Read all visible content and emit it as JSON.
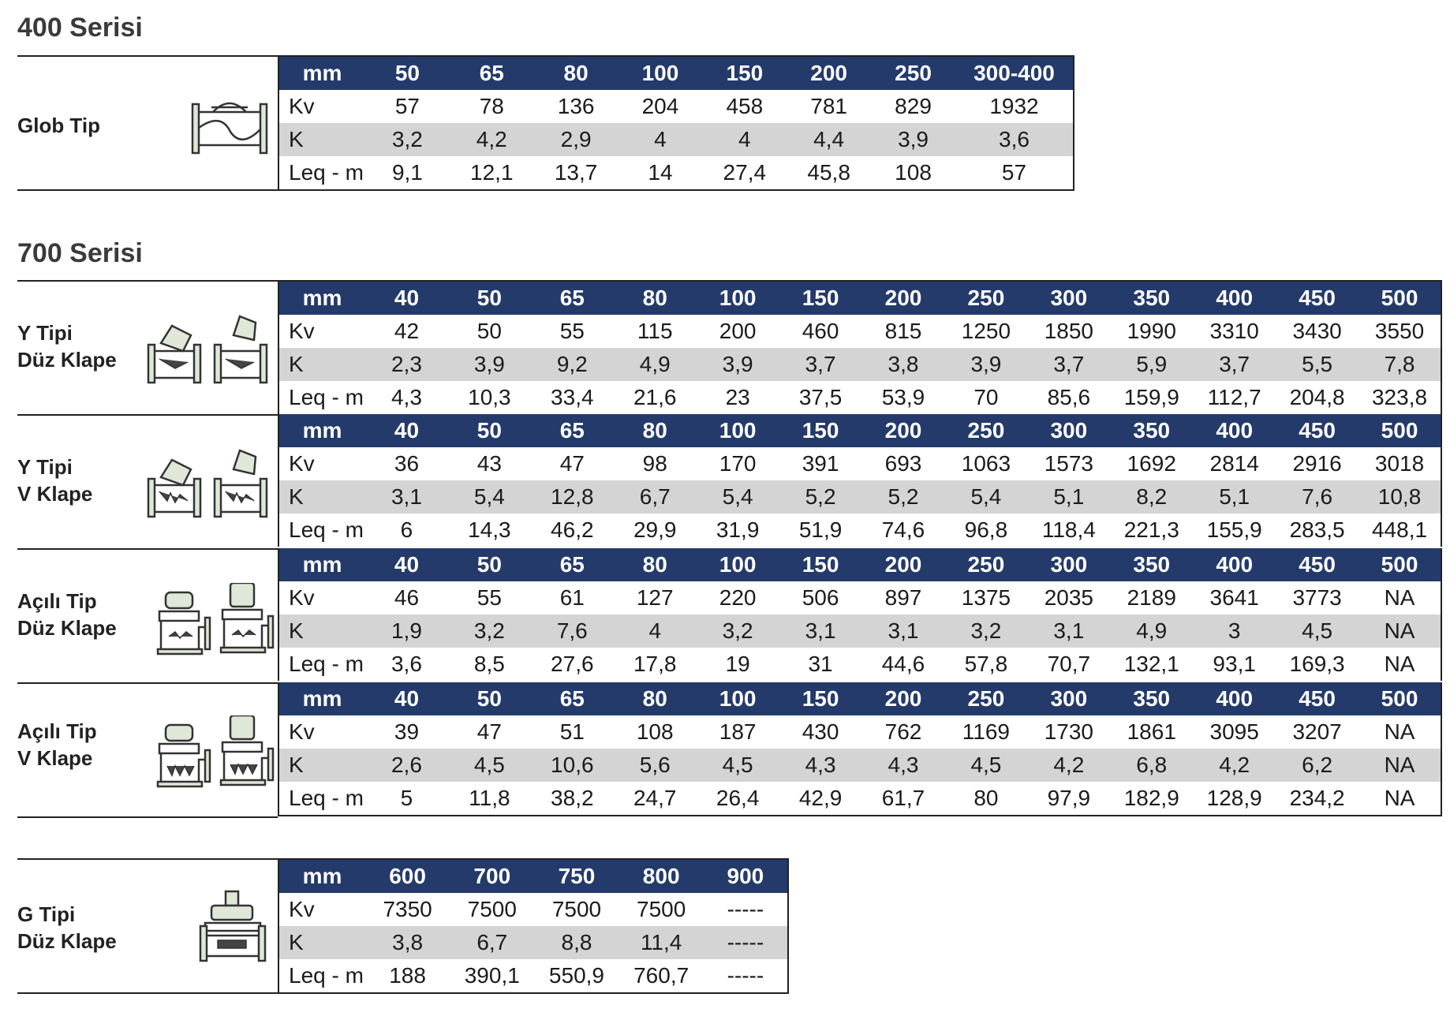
{
  "series400": {
    "title": "400 Serisi",
    "rows": [
      {
        "label": [
          "Glob Tip"
        ],
        "icon": "globe-valve-icon",
        "header": {
          "label": "mm",
          "sizes": [
            "50",
            "65",
            "80",
            "100",
            "150",
            "200",
            "250",
            "300-400"
          ]
        },
        "kv": {
          "label": "Kv",
          "values": [
            "57",
            "78",
            "136",
            "204",
            "458",
            "781",
            "829",
            "1932"
          ]
        },
        "k": {
          "label": "K",
          "values": [
            "3,2",
            "4,2",
            "2,9",
            "4",
            "4",
            "4,4",
            "3,9",
            "3,6"
          ]
        },
        "leq": {
          "label": "Leq - m",
          "values": [
            "9,1",
            "12,1",
            "13,7",
            "14",
            "27,4",
            "45,8",
            "108",
            "57"
          ]
        }
      }
    ]
  },
  "series700": {
    "title": "700 Serisi",
    "rows": [
      {
        "label": [
          "Y Tipi",
          "Düz Klape"
        ],
        "icon": "y-type-valve-icon",
        "header": {
          "label": "mm",
          "sizes": [
            "40",
            "50",
            "65",
            "80",
            "100",
            "150",
            "200",
            "250",
            "300",
            "350",
            "400",
            "450",
            "500"
          ]
        },
        "kv": {
          "label": "Kv",
          "values": [
            "42",
            "50",
            "55",
            "115",
            "200",
            "460",
            "815",
            "1250",
            "1850",
            "1990",
            "3310",
            "3430",
            "3550"
          ]
        },
        "k": {
          "label": "K",
          "values": [
            "2,3",
            "3,9",
            "9,2",
            "4,9",
            "3,9",
            "3,7",
            "3,8",
            "3,9",
            "3,7",
            "5,9",
            "3,7",
            "5,5",
            "7,8"
          ]
        },
        "leq": {
          "label": "Leq - m",
          "values": [
            "4,3",
            "10,3",
            "33,4",
            "21,6",
            "23",
            "37,5",
            "53,9",
            "70",
            "85,6",
            "159,9",
            "112,7",
            "204,8",
            "323,8"
          ]
        }
      },
      {
        "label": [
          "Y Tipi",
          "V Klape"
        ],
        "icon": "y-type-v-valve-icon",
        "header": {
          "label": "mm",
          "sizes": [
            "40",
            "50",
            "65",
            "80",
            "100",
            "150",
            "200",
            "250",
            "300",
            "350",
            "400",
            "450",
            "500"
          ]
        },
        "kv": {
          "label": "Kv",
          "values": [
            "36",
            "43",
            "47",
            "98",
            "170",
            "391",
            "693",
            "1063",
            "1573",
            "1692",
            "2814",
            "2916",
            "3018"
          ]
        },
        "k": {
          "label": "K",
          "values": [
            "3,1",
            "5,4",
            "12,8",
            "6,7",
            "5,4",
            "5,2",
            "5,2",
            "5,4",
            "5,1",
            "8,2",
            "5,1",
            "7,6",
            "10,8"
          ]
        },
        "leq": {
          "label": "Leq - m",
          "values": [
            "6",
            "14,3",
            "46,2",
            "29,9",
            "31,9",
            "51,9",
            "74,6",
            "96,8",
            "118,4",
            "221,3",
            "155,9",
            "283,5",
            "448,1"
          ]
        }
      },
      {
        "label": [
          "Açılı Tip",
          "Düz Klape"
        ],
        "icon": "angle-valve-icon",
        "header": {
          "label": "mm",
          "sizes": [
            "40",
            "50",
            "65",
            "80",
            "100",
            "150",
            "200",
            "250",
            "300",
            "350",
            "400",
            "450",
            "500"
          ]
        },
        "kv": {
          "label": "Kv",
          "values": [
            "46",
            "55",
            "61",
            "127",
            "220",
            "506",
            "897",
            "1375",
            "2035",
            "2189",
            "3641",
            "3773",
            "NA"
          ]
        },
        "k": {
          "label": "K",
          "values": [
            "1,9",
            "3,2",
            "7,6",
            "4",
            "3,2",
            "3,1",
            "3,1",
            "3,2",
            "3,1",
            "4,9",
            "3",
            "4,5",
            "NA"
          ]
        },
        "leq": {
          "label": "Leq - m",
          "values": [
            "3,6",
            "8,5",
            "27,6",
            "17,8",
            "19",
            "31",
            "44,6",
            "57,8",
            "70,7",
            "132,1",
            "93,1",
            "169,3",
            "NA"
          ]
        }
      },
      {
        "label": [
          "Açılı Tip",
          "V Klape"
        ],
        "icon": "angle-v-valve-icon",
        "header": {
          "label": "mm",
          "sizes": [
            "40",
            "50",
            "65",
            "80",
            "100",
            "150",
            "200",
            "250",
            "300",
            "350",
            "400",
            "450",
            "500"
          ]
        },
        "kv": {
          "label": "Kv",
          "values": [
            "39",
            "47",
            "51",
            "108",
            "187",
            "430",
            "762",
            "1169",
            "1730",
            "1861",
            "3095",
            "3207",
            "NA"
          ]
        },
        "k": {
          "label": "K",
          "values": [
            "2,6",
            "4,5",
            "10,6",
            "5,6",
            "4,5",
            "4,3",
            "4,3",
            "4,5",
            "4,2",
            "6,8",
            "4,2",
            "6,2",
            "NA"
          ]
        },
        "leq": {
          "label": "Leq - m",
          "values": [
            "5",
            "11,8",
            "38,2",
            "24,7",
            "26,4",
            "42,9",
            "61,7",
            "80",
            "97,9",
            "182,9",
            "128,9",
            "234,2",
            "NA"
          ]
        }
      }
    ]
  },
  "seriesG": {
    "rows": [
      {
        "label": [
          "G Tipi",
          "Düz Klape"
        ],
        "icon": "g-type-valve-icon",
        "header": {
          "label": "mm",
          "sizes": [
            "600",
            "700",
            "750",
            "800",
            "900"
          ]
        },
        "kv": {
          "label": "Kv",
          "values": [
            "7350",
            "7500",
            "7500",
            "7500",
            "-----"
          ]
        },
        "k": {
          "label": "K",
          "values": [
            "3,8",
            "6,7",
            "8,8",
            "11,4",
            "-----"
          ]
        },
        "leq": {
          "label": "Leq - m",
          "values": [
            "188",
            "390,1",
            "550,9",
            "760,7",
            "-----"
          ]
        }
      }
    ]
  }
}
